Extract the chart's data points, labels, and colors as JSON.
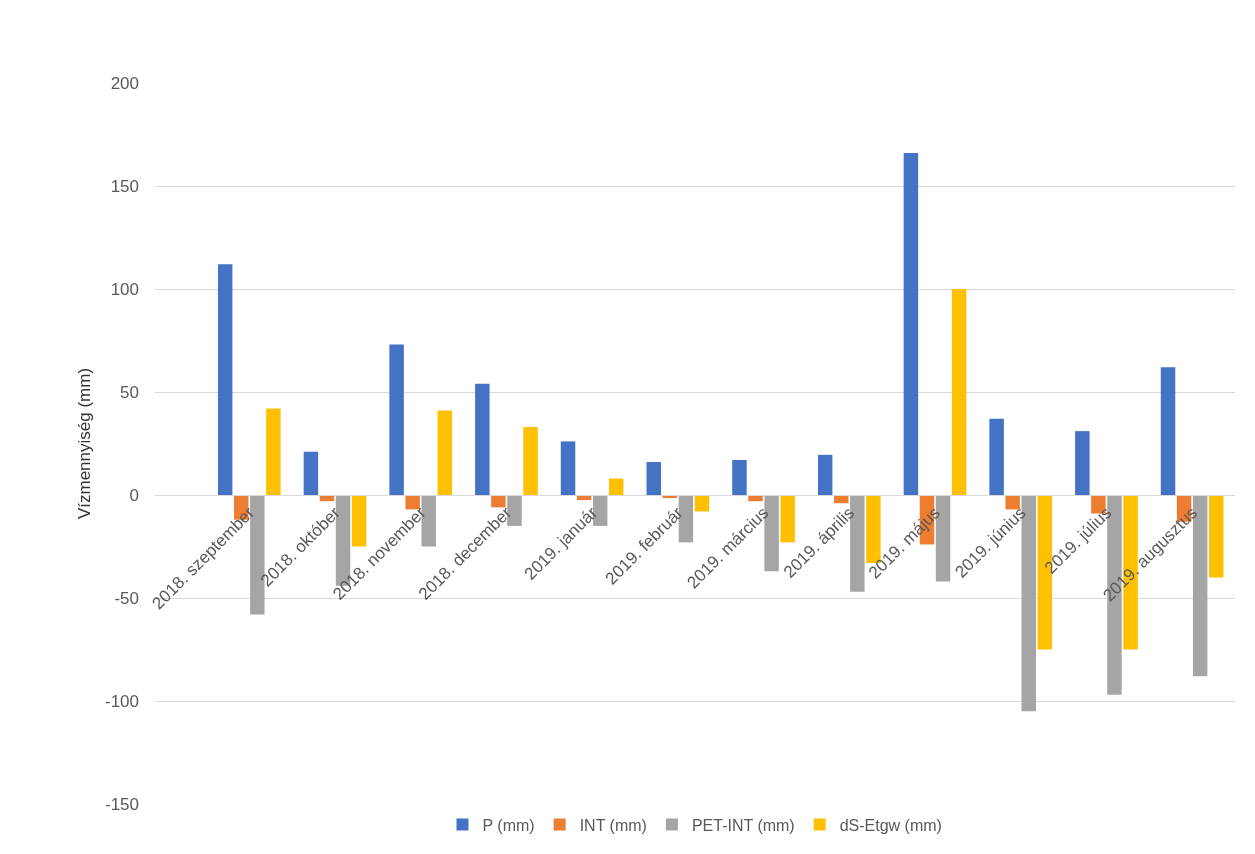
{
  "chart_data": {
    "type": "bar",
    "ylabel": "Vízmennyiség (mm)",
    "categories": [
      "2018. szeptember",
      "2018. október",
      "2018. november",
      "2018. december",
      "2019. január",
      "2019. február",
      "2019. március",
      "2019. április",
      "2019. május",
      "2019. június",
      "2019. július",
      "2019. augusztus"
    ],
    "series": [
      {
        "name": "P (mm)",
        "color": "#4472c4",
        "values": [
          112,
          21,
          73,
          54,
          26,
          16,
          17,
          19.5,
          166,
          37,
          31,
          62
        ]
      },
      {
        "name": "INT (mm)",
        "color": "#ed7d31",
        "values": [
          -12,
          -3,
          -7,
          -6,
          -2.5,
          -1.5,
          -3,
          -4,
          -24,
          -7,
          -9,
          -13
        ]
      },
      {
        "name": "PET-INT (mm)",
        "color": "#a5a5a5",
        "values": [
          -58,
          -44,
          -25,
          -15,
          -15,
          -23,
          -37,
          -47,
          -42,
          -105,
          -97,
          -88
        ]
      },
      {
        "name": "dS-Etgw (mm)",
        "color": "#ffc000",
        "values": [
          42,
          -25,
          41,
          33,
          8,
          -8,
          -23,
          -33,
          100,
          -75,
          -75,
          -40
        ]
      }
    ],
    "ylim": [
      -150,
      200
    ],
    "yticks": [
      -150,
      -100,
      -50,
      0,
      50,
      100,
      150,
      200
    ],
    "grid": "y",
    "legend": "bottom"
  }
}
